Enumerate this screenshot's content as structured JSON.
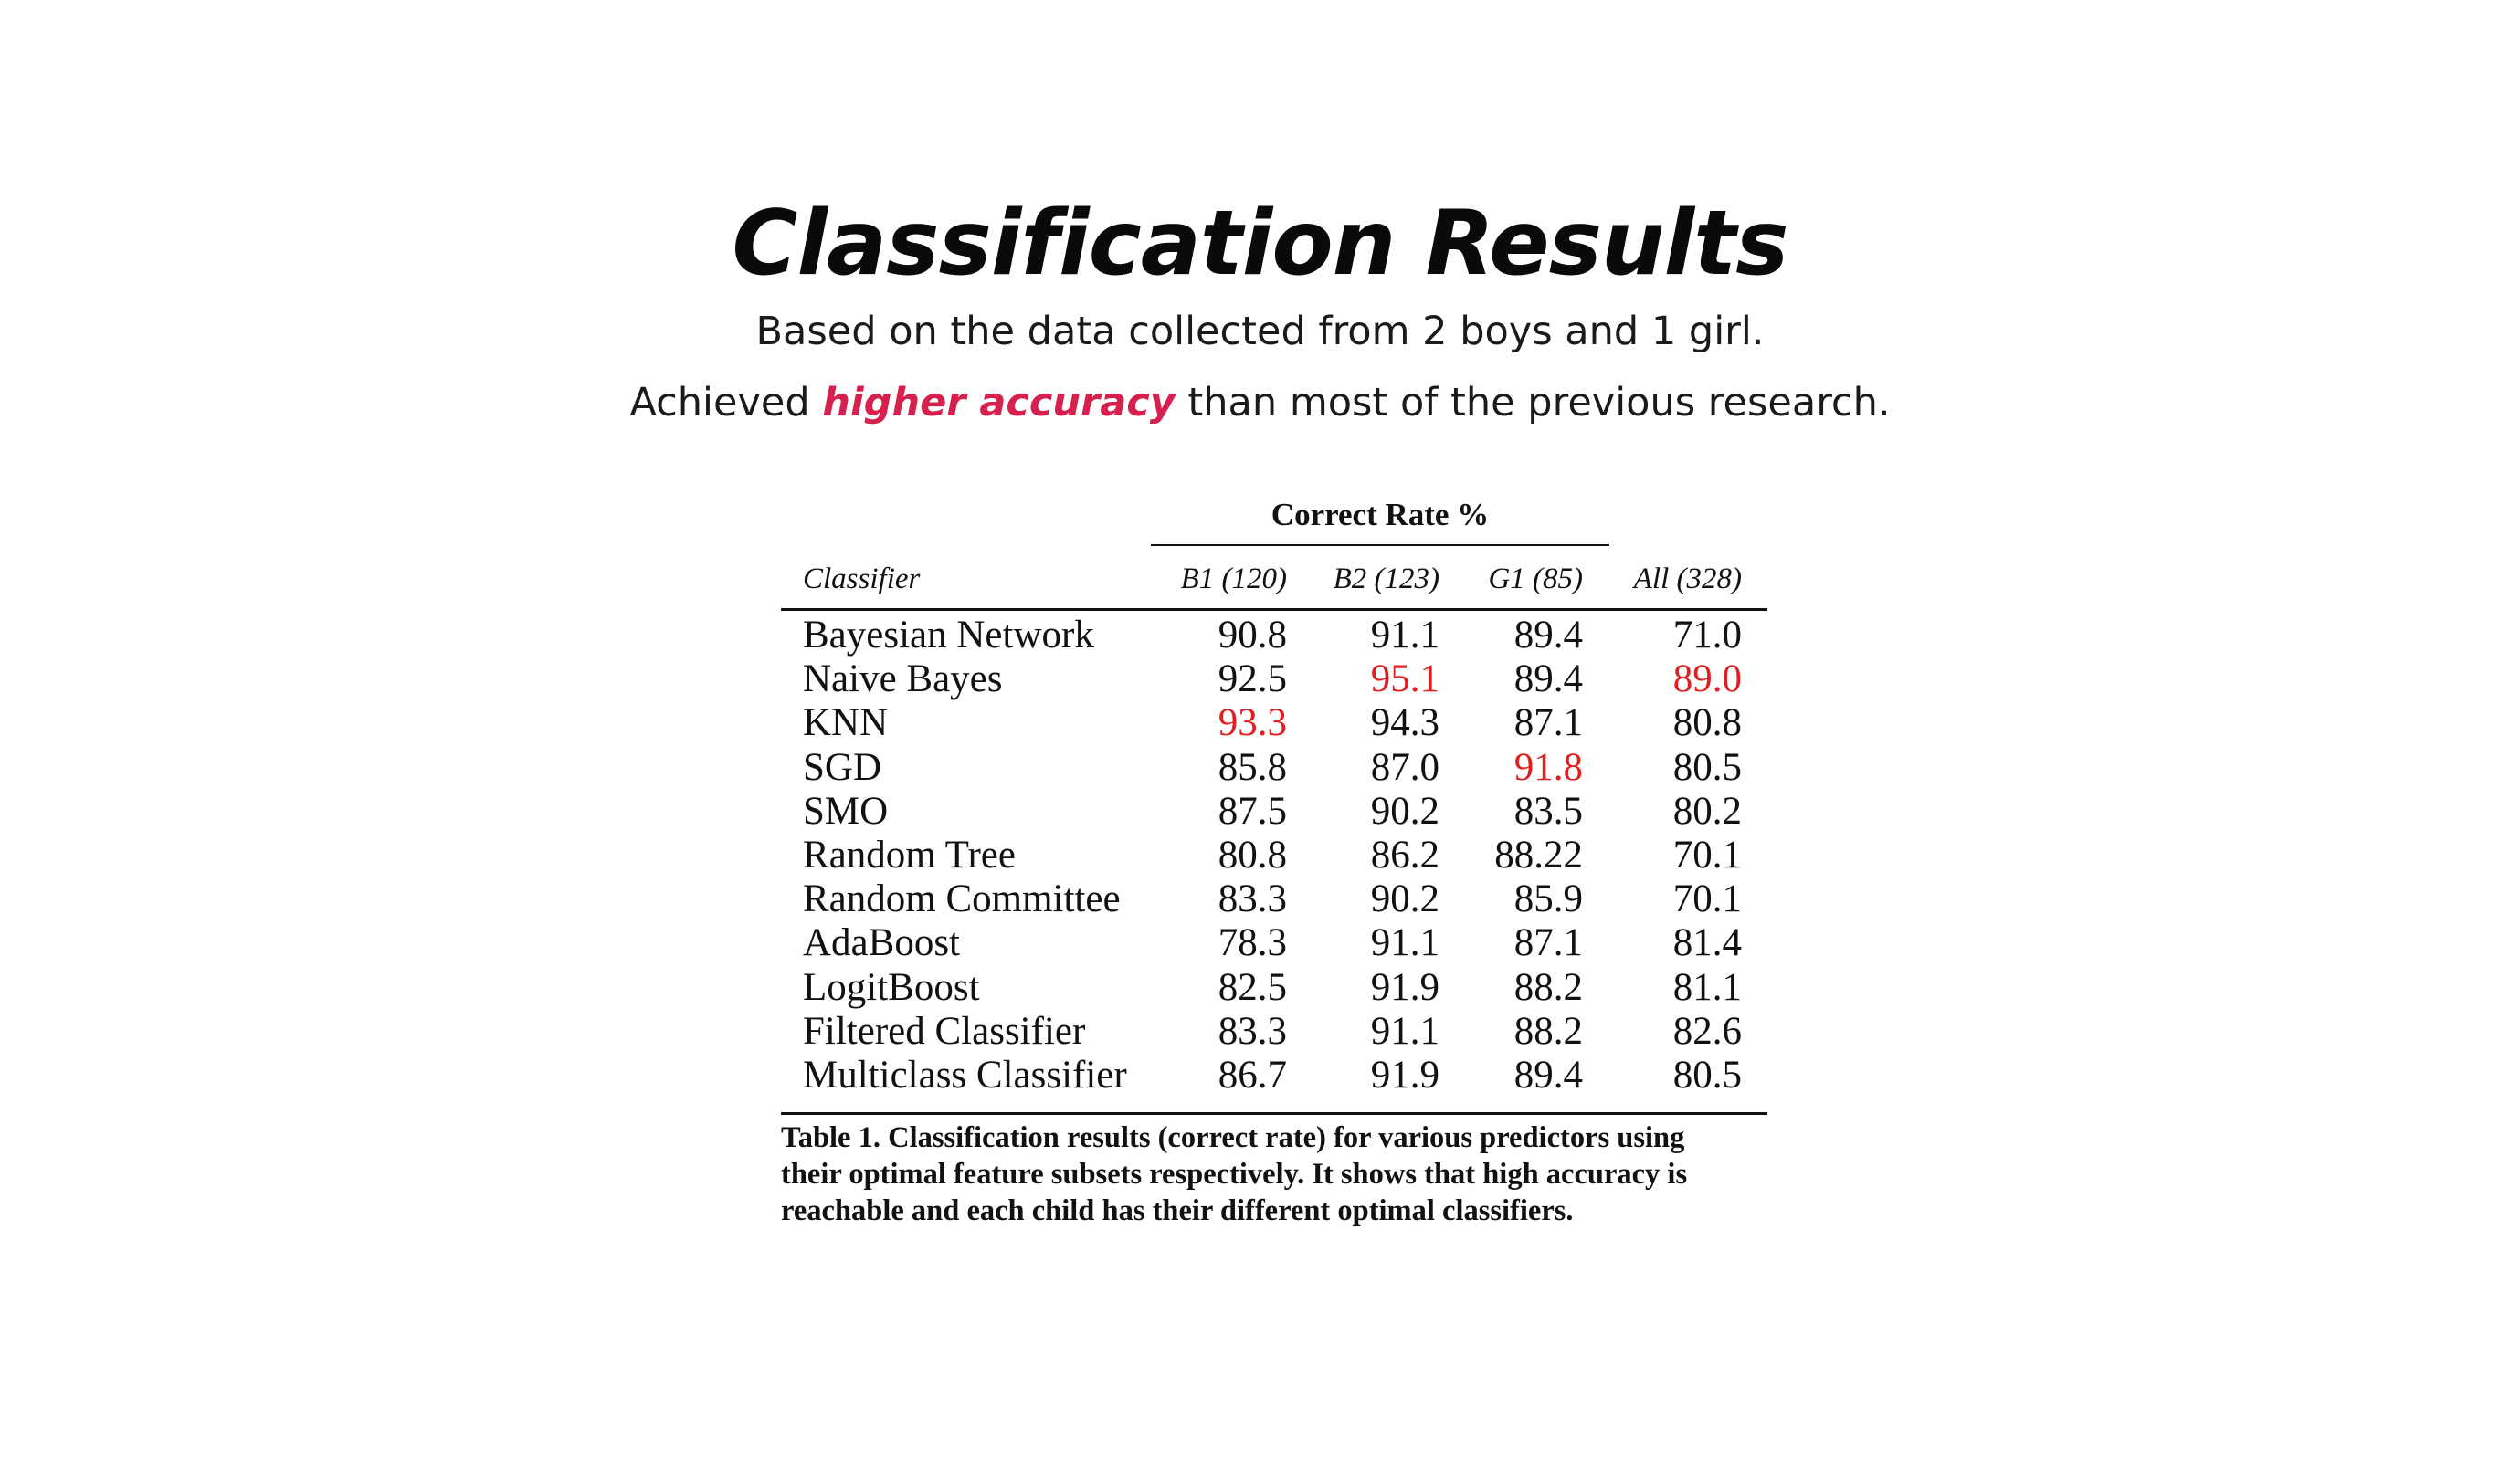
{
  "slide": {
    "title": "Classification Results",
    "subtitle_line1": "Based on the data collected from 2 boys and 1 girl.",
    "subtitle_line2_prefix": "Achieved ",
    "subtitle_line2_highlight": "higher accuracy",
    "subtitle_line2_suffix": " than most of the previous research.",
    "accent_color": "#d6204e"
  },
  "table": {
    "group_header": "Correct Rate %",
    "columns": [
      "Classifier",
      "B1 (120)",
      "B2 (123)",
      "G1 (85)",
      "All (328)"
    ],
    "highlight_color": "#e02020",
    "rows": [
      {
        "name": "Bayesian Network",
        "values": [
          "90.8",
          "91.1",
          "89.4",
          "71.0"
        ],
        "highlight": [
          false,
          false,
          false,
          false
        ]
      },
      {
        "name": "Naive Bayes",
        "values": [
          "92.5",
          "95.1",
          "89.4",
          "89.0"
        ],
        "highlight": [
          false,
          true,
          false,
          true
        ]
      },
      {
        "name": "KNN",
        "values": [
          "93.3",
          "94.3",
          "87.1",
          "80.8"
        ],
        "highlight": [
          true,
          false,
          false,
          false
        ]
      },
      {
        "name": "SGD",
        "values": [
          "85.8",
          "87.0",
          "91.8",
          "80.5"
        ],
        "highlight": [
          false,
          false,
          true,
          false
        ]
      },
      {
        "name": "SMO",
        "values": [
          "87.5",
          "90.2",
          "83.5",
          "80.2"
        ],
        "highlight": [
          false,
          false,
          false,
          false
        ]
      },
      {
        "name": "Random Tree",
        "values": [
          "80.8",
          "86.2",
          "88.22",
          "70.1"
        ],
        "highlight": [
          false,
          false,
          false,
          false
        ]
      },
      {
        "name": "Random Committee",
        "values": [
          "83.3",
          "90.2",
          "85.9",
          "70.1"
        ],
        "highlight": [
          false,
          false,
          false,
          false
        ]
      },
      {
        "name": "AdaBoost",
        "values": [
          "78.3",
          "91.1",
          "87.1",
          "81.4"
        ],
        "highlight": [
          false,
          false,
          false,
          false
        ]
      },
      {
        "name": "LogitBoost",
        "values": [
          "82.5",
          "91.9",
          "88.2",
          "81.1"
        ],
        "highlight": [
          false,
          false,
          false,
          false
        ]
      },
      {
        "name": "Filtered Classifier",
        "values": [
          "83.3",
          "91.1",
          "88.2",
          "82.6"
        ],
        "highlight": [
          false,
          false,
          false,
          false
        ]
      },
      {
        "name": "Multiclass Classifier",
        "values": [
          "86.7",
          "91.9",
          "89.4",
          "80.5"
        ],
        "highlight": [
          false,
          false,
          false,
          false
        ]
      }
    ],
    "caption_lines": [
      "Table 1. Classification results (correct rate) for various predictors using",
      "their optimal feature subsets respectively. It shows that high accuracy is",
      "reachable and each child has their different optimal classifiers."
    ]
  }
}
